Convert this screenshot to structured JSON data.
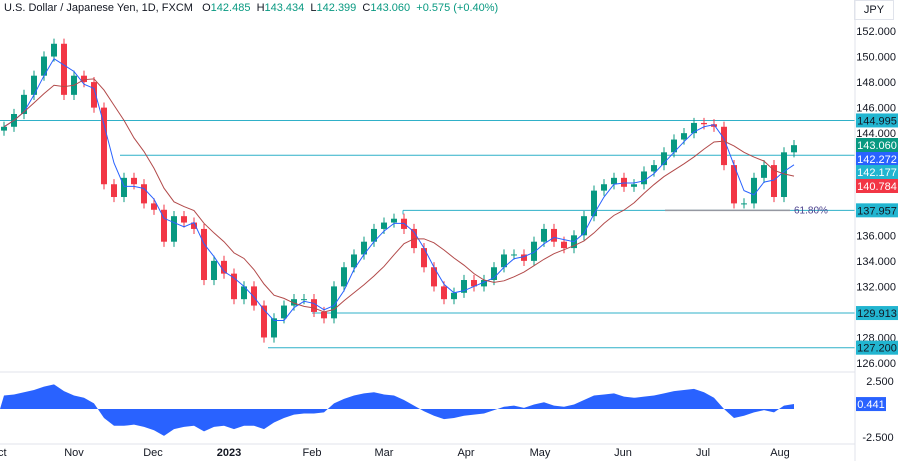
{
  "header": {
    "symbol": "U.S. Dollar / Japanese Yen, 1D, FXCM",
    "open_label": "O",
    "open": "142.485",
    "high_label": "H",
    "high": "143.434",
    "low_label": "L",
    "low": "142.399",
    "close_label": "C",
    "close": "143.060",
    "change": "+0.575 (+0.40%)"
  },
  "currency": "JPY",
  "colors": {
    "up": "#089981",
    "down": "#f23645",
    "ma_fast": "#2962ff",
    "ma_slow": "#b24a4a",
    "levels": "#2fb0c8",
    "osc": "#2962ff"
  },
  "chart_data": {
    "type": "candlestick",
    "x_labels": [
      "Oct",
      "Nov",
      "Dec",
      "2023",
      "Feb",
      "Mar",
      "Apr",
      "May",
      "Jun",
      "Jul",
      "Aug"
    ],
    "y_ticks": [
      "152.000",
      "150.000",
      "148.000",
      "146.000",
      "144.000",
      "136.000",
      "134.000",
      "132.000",
      "128.000",
      "126.000"
    ],
    "ylim": [
      125,
      153
    ],
    "closes": [
      144.5,
      145.5,
      147,
      148.5,
      150,
      151,
      147,
      148.5,
      148,
      146,
      140,
      139,
      140.5,
      140,
      138.5,
      138,
      135.5,
      137.5,
      137,
      136.5,
      132.5,
      134,
      133,
      131,
      132,
      130.5,
      128,
      129.5,
      130.5,
      131,
      131,
      130,
      129.5,
      132,
      133.5,
      134.5,
      135.5,
      136.5,
      137,
      137.3,
      136.5,
      135,
      133.5,
      132,
      131,
      131.5,
      132.5,
      132,
      132.5,
      133.5,
      134.5,
      134.5,
      134,
      135.5,
      136.5,
      135.5,
      135,
      136,
      137.5,
      139.5,
      140,
      140.5,
      139.8,
      140,
      141,
      141.5,
      142.5,
      143.5,
      144,
      144.8,
      144.7,
      144.5,
      141.5,
      138.5,
      138.5,
      140.5,
      141.5,
      139,
      142.5,
      143.06
    ],
    "levels": [
      {
        "value": 144.995,
        "label": "144.995"
      },
      {
        "value": 142.272,
        "label": "142.272"
      },
      {
        "value": 137.957,
        "label": "137.957"
      },
      {
        "value": 129.913,
        "label": "129.913"
      },
      {
        "value": 127.2,
        "label": "127.200"
      }
    ],
    "fib": {
      "label": "61.80%",
      "value": 137.95
    },
    "value_labels": [
      {
        "value": 143.06,
        "label": "143.060",
        "color": "#089981"
      },
      {
        "value": 142.177,
        "label": "142.177",
        "color": "#22b5d0"
      },
      {
        "value": 140.784,
        "label": "140.784",
        "color": "#f23645"
      }
    ],
    "oscillator": {
      "ylim": [
        -2.5,
        2.5
      ],
      "ticks": [
        "2.500",
        "-2.500"
      ],
      "last": "0.441",
      "values": [
        1.2,
        1.3,
        1.5,
        1.7,
        2.0,
        2.2,
        1.6,
        1.2,
        1.0,
        0.5,
        -0.8,
        -1.5,
        -1.5,
        -1.4,
        -1.6,
        -1.9,
        -2.4,
        -1.8,
        -1.6,
        -1.5,
        -2.0,
        -1.6,
        -1.5,
        -1.8,
        -1.5,
        -1.5,
        -1.8,
        -1.2,
        -0.8,
        -0.5,
        -0.4,
        -0.4,
        -0.3,
        0.5,
        0.9,
        1.2,
        1.4,
        1.5,
        1.3,
        1.2,
        0.8,
        0.3,
        -0.2,
        -0.6,
        -0.9,
        -0.8,
        -0.6,
        -0.5,
        -0.4,
        -0.1,
        0.2,
        0.3,
        0.1,
        0.4,
        0.6,
        0.3,
        0.2,
        0.4,
        0.8,
        1.2,
        1.3,
        1.4,
        1.1,
        1.0,
        1.1,
        1.2,
        1.4,
        1.6,
        1.7,
        1.8,
        1.5,
        1.0,
        0.0,
        -0.8,
        -0.6,
        -0.3,
        -0.1,
        -0.3,
        0.3,
        0.441
      ]
    }
  }
}
